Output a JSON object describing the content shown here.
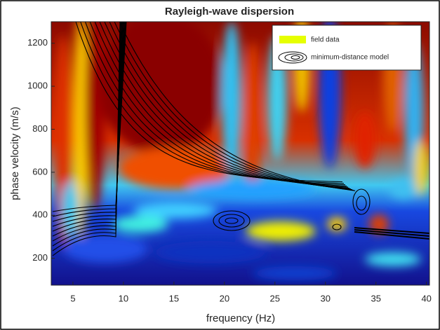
{
  "chart_data": {
    "type": "heatmap",
    "title": "Rayleigh-wave dispersion",
    "x_label": "frequency (Hz)",
    "y_label": "phase velocity (m/s)",
    "xlim": [
      2.85,
      40.3
    ],
    "xticks": [
      5,
      10,
      15,
      20,
      25,
      30,
      35,
      40
    ],
    "ylim": [
      75,
      1300
    ],
    "yticks": [
      200,
      400,
      600,
      800,
      1000,
      1200
    ],
    "legend": "upper right",
    "series": [
      {
        "name": "field data",
        "color": "#e6ff00"
      },
      {
        "name": "minimum-distance model",
        "color": "#000000"
      }
    ]
  }
}
